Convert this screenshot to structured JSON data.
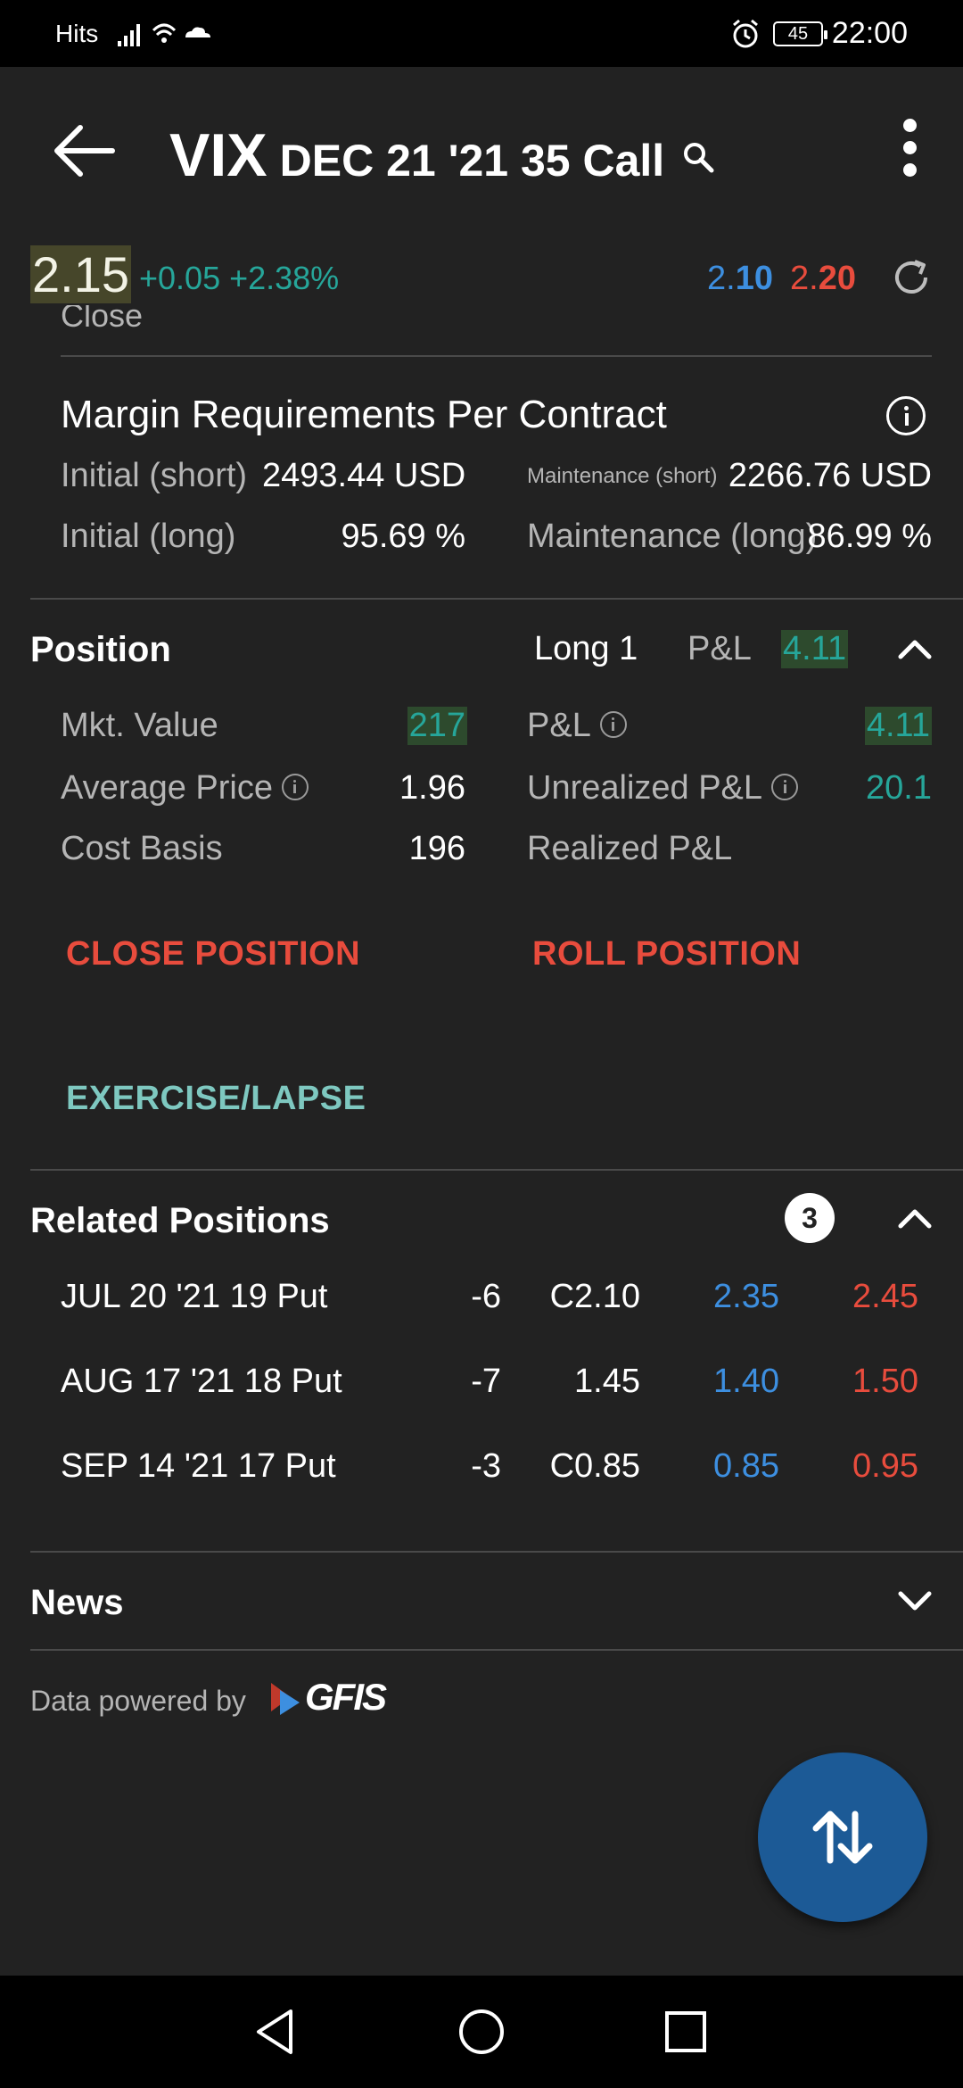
{
  "status_bar": {
    "carrier": "Hits",
    "battery": "45",
    "time": "22:00"
  },
  "header": {
    "symbol": "VIX",
    "description": "DEC 21 '21 35 Call"
  },
  "quote": {
    "last": "2.15",
    "change": "+0.05 +2.38%",
    "bid_prefix": "2.",
    "bid_bold": "10",
    "ask_prefix": "2.",
    "ask_bold": "20"
  },
  "close_label": "Close",
  "margin": {
    "title": "Margin Requirements Per Contract",
    "initial_short_label": "Initial (short)",
    "initial_short_value": "2493.44 USD",
    "maintenance_short_label": "Maintenance (short)",
    "maintenance_short_value": "2266.76 USD",
    "initial_long_label": "Initial (long)",
    "initial_long_value": "95.69 %",
    "maintenance_long_label": "Maintenance (long)",
    "maintenance_long_value": "86.99 %"
  },
  "position": {
    "title": "Position",
    "side": "Long 1",
    "pnl_label": "P&L",
    "pnl_value": "4.11",
    "mkt_value_label": "Mkt. Value",
    "mkt_value": "217",
    "pnl2_label": "P&L",
    "pnl2_value": "4.11",
    "avg_price_label": "Average Price",
    "avg_price": "1.96",
    "unrealized_label": "Unrealized P&L",
    "unrealized_value": "20.1",
    "cost_basis_label": "Cost Basis",
    "cost_basis": "196",
    "realized_label": "Realized P&L",
    "close_position": "CLOSE POSITION",
    "roll_position": "ROLL POSITION",
    "exercise": "EXERCISE/LAPSE"
  },
  "related": {
    "title": "Related Positions",
    "count": "3",
    "rows": [
      {
        "name": "JUL 20 '21 19 Put",
        "qty": "-6",
        "last": "C2.10",
        "bid": "2.35",
        "ask": "2.45"
      },
      {
        "name": "AUG 17 '21 18 Put",
        "qty": "-7",
        "last": "1.45",
        "bid": "1.40",
        "ask": "1.50"
      },
      {
        "name": "SEP 14 '21 17 Put",
        "qty": "-3",
        "last": "C0.85",
        "bid": "0.85",
        "ask": "0.95"
      }
    ]
  },
  "news": {
    "title": "News"
  },
  "footer": {
    "powered_by": "Data powered by",
    "brand": "GFIS"
  },
  "icons": {
    "back": "back-arrow-icon",
    "search": "search-icon",
    "more": "more-vert-icon",
    "refresh": "refresh-icon",
    "info": "info-icon",
    "chevron_up": "chevron-up-icon",
    "chevron_down": "chevron-down-icon",
    "trade": "swap-vertical-icon"
  },
  "colors": {
    "background": "#222222",
    "positive": "#26a69a",
    "bid": "#3d8fe0",
    "ask": "#e84c3d",
    "teal_button": "#7ec8c0",
    "fab": "#1c5a96"
  }
}
